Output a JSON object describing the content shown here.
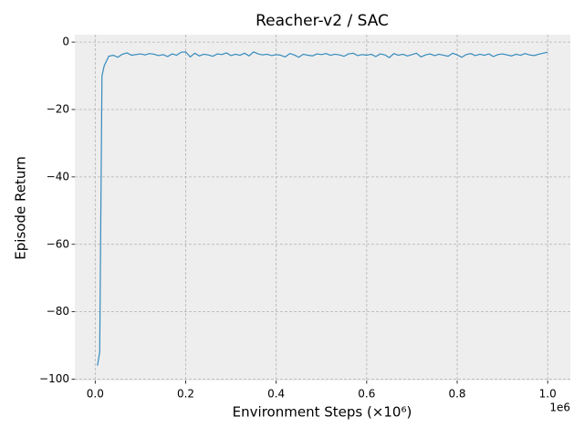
{
  "chart_data": {
    "type": "line",
    "title": "Reacher-v2 / SAC",
    "x_label": "Environment Steps (×10⁶)",
    "y_label": "Episode Return",
    "x_offset_label": "1e6",
    "xlim": [
      -0.045,
      1.05
    ],
    "ylim": [
      -100.4,
      2.2
    ],
    "xticks": [
      {
        "value": 0,
        "label": "0.0"
      },
      {
        "value": 0.2,
        "label": "0.2"
      },
      {
        "value": 0.4,
        "label": "0.4"
      },
      {
        "value": 0.6,
        "label": "0.6"
      },
      {
        "value": 0.8,
        "label": "0.8"
      },
      {
        "value": 1.0,
        "label": "1.0"
      }
    ],
    "yticks": [
      0,
      {
        "value": -20,
        "label": "−20"
      },
      {
        "value": -40,
        "label": "−40"
      },
      {
        "value": -60,
        "label": "−60"
      },
      {
        "value": -80,
        "label": "−80"
      },
      {
        "value": -100,
        "label": "−100"
      }
    ],
    "grid": true,
    "x": [
      0.005,
      0.01,
      0.015,
      0.02,
      0.03,
      0.04,
      0.05,
      0.06,
      0.07,
      0.08,
      0.09,
      0.1,
      0.11,
      0.12,
      0.13,
      0.14,
      0.15,
      0.16,
      0.17,
      0.18,
      0.19,
      0.2,
      0.21,
      0.22,
      0.23,
      0.24,
      0.25,
      0.26,
      0.27,
      0.28,
      0.29,
      0.3,
      0.31,
      0.32,
      0.33,
      0.34,
      0.35,
      0.36,
      0.37,
      0.38,
      0.39,
      0.4,
      0.41,
      0.42,
      0.43,
      0.44,
      0.45,
      0.46,
      0.47,
      0.48,
      0.49,
      0.5,
      0.51,
      0.52,
      0.53,
      0.54,
      0.55,
      0.56,
      0.57,
      0.58,
      0.59,
      0.6,
      0.61,
      0.62,
      0.63,
      0.64,
      0.65,
      0.66,
      0.67,
      0.68,
      0.69,
      0.7,
      0.71,
      0.72,
      0.73,
      0.74,
      0.75,
      0.76,
      0.77,
      0.78,
      0.79,
      0.8,
      0.81,
      0.82,
      0.83,
      0.84,
      0.85,
      0.86,
      0.87,
      0.88,
      0.89,
      0.9,
      0.91,
      0.92,
      0.93,
      0.94,
      0.95,
      0.96,
      0.97,
      0.98,
      0.99,
      1.0
    ],
    "series": [
      {
        "color": "#348abd",
        "values": [
          -96,
          -92,
          -10,
          -7,
          -4.2,
          -3.9,
          -4.5,
          -3.6,
          -3.2,
          -3.9,
          -3.7,
          -3.5,
          -3.8,
          -3.4,
          -3.6,
          -4.0,
          -3.7,
          -4.3,
          -3.5,
          -3.9,
          -3.0,
          -2.9,
          -4.4,
          -3.3,
          -4.1,
          -3.6,
          -3.8,
          -4.2,
          -3.5,
          -3.7,
          -3.2,
          -4.0,
          -3.6,
          -3.9,
          -3.3,
          -4.1,
          -2.9,
          -3.5,
          -3.8,
          -3.6,
          -4.0,
          -3.7,
          -3.9,
          -4.4,
          -3.4,
          -3.8,
          -4.5,
          -3.6,
          -3.9,
          -4.1,
          -3.5,
          -3.7,
          -3.4,
          -3.9,
          -3.6,
          -3.8,
          -4.2,
          -3.5,
          -3.3,
          -4.0,
          -3.7,
          -3.9,
          -3.6,
          -4.3,
          -3.5,
          -3.8,
          -4.6,
          -3.4,
          -3.9,
          -3.6,
          -4.1,
          -3.7,
          -3.3,
          -4.4,
          -3.8,
          -3.5,
          -4.0,
          -3.6,
          -3.9,
          -4.2,
          -3.3,
          -3.8,
          -4.5,
          -3.7,
          -3.4,
          -4.0,
          -3.6,
          -3.9,
          -3.5,
          -4.3,
          -3.7,
          -3.5,
          -3.8,
          -4.1,
          -3.6,
          -3.9,
          -3.4,
          -3.8,
          -4.0,
          -3.6,
          -3.3,
          -3.0
        ]
      }
    ]
  }
}
